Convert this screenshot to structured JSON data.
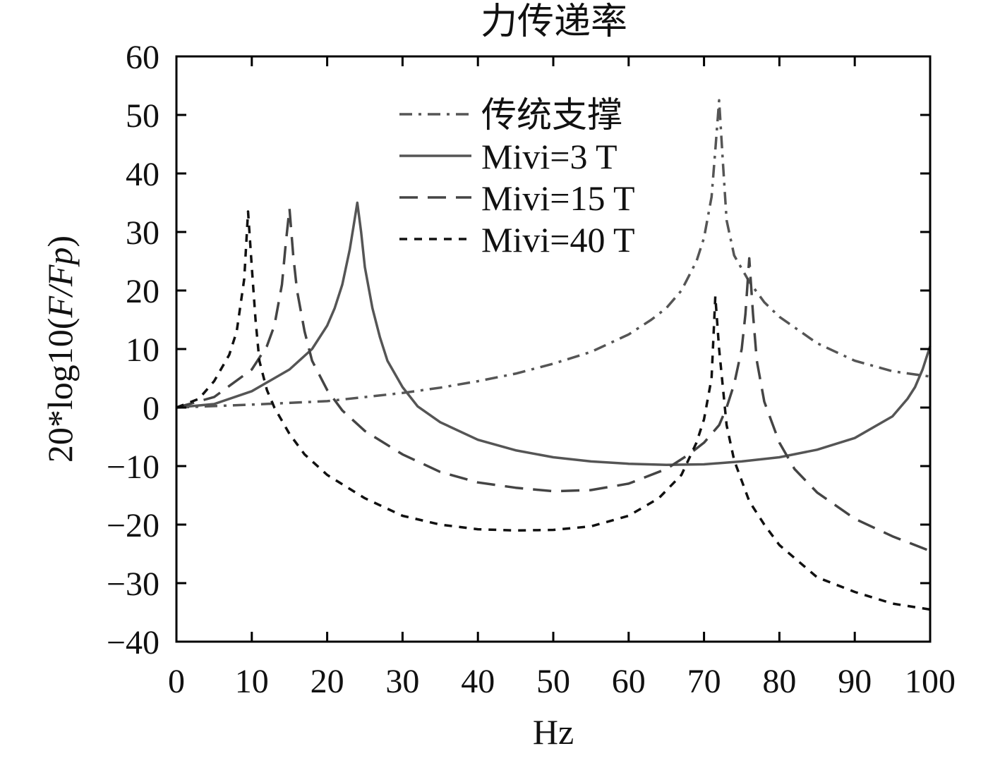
{
  "chart_data": {
    "type": "line",
    "title": "力传递率",
    "xlabel": "Hz",
    "ylabel_prefix": "20*log10(",
    "ylabel_italic": "F/Fp",
    "ylabel_suffix": ")",
    "xlim": [
      0,
      100
    ],
    "ylim": [
      -40,
      60
    ],
    "xticks": [
      0,
      10,
      20,
      30,
      40,
      50,
      60,
      70,
      80,
      90,
      100
    ],
    "yticks": [
      60,
      50,
      40,
      30,
      20,
      10,
      0,
      -10,
      -20,
      -30,
      -40
    ],
    "ytick_labels": [
      "60",
      "50",
      "40",
      "30",
      "20",
      "10",
      "0",
      "−10",
      "−20",
      "−30",
      "−40"
    ],
    "legend_position": "top-center",
    "series": [
      {
        "name": "传统支撑",
        "color": "#555555",
        "dash": "18,9,4,9",
        "x": [
          0,
          10,
          20,
          25,
          30,
          35,
          40,
          45,
          50,
          55,
          60,
          63,
          65,
          67,
          69,
          70,
          71,
          71.5,
          72,
          72.5,
          73,
          74,
          76,
          78,
          80,
          85,
          90,
          95,
          100
        ],
        "y": [
          0,
          0.5,
          1.1,
          1.8,
          2.5,
          3.4,
          4.5,
          5.8,
          7.5,
          9.5,
          12.5,
          15,
          17,
          20,
          25,
          29,
          36,
          44,
          52.5,
          42,
          32,
          26,
          21.5,
          18,
          15.5,
          11,
          8,
          6.2,
          5.3
        ]
      },
      {
        "name": "Mivi=3 T",
        "color": "#555555",
        "dash": "",
        "x": [
          0,
          5,
          10,
          15,
          18,
          20,
          21,
          22,
          23,
          23.5,
          24,
          24.5,
          25,
          26,
          27,
          28,
          30,
          32,
          35,
          40,
          45,
          50,
          55,
          60,
          65,
          70,
          75,
          80,
          85,
          90,
          95,
          97,
          98,
          99,
          100
        ],
        "y": [
          0,
          0.6,
          2.8,
          6.5,
          10,
          14,
          17,
          21,
          27,
          31,
          35,
          30,
          24,
          17,
          12,
          8,
          3.5,
          0.2,
          -2.5,
          -5.5,
          -7.3,
          -8.5,
          -9.2,
          -9.6,
          -9.8,
          -9.7,
          -9.2,
          -8.5,
          -7.2,
          -5.2,
          -1.5,
          1.5,
          3.5,
          6.5,
          10.5
        ]
      },
      {
        "name": "Mivi=15 T",
        "color": "#444444",
        "dash": "26,14",
        "x": [
          0,
          5,
          10,
          12,
          13,
          14,
          14.5,
          15,
          15.5,
          16,
          17,
          18,
          20,
          22,
          25,
          30,
          35,
          40,
          45,
          50,
          55,
          60,
          65,
          68,
          70,
          72,
          73,
          74,
          75,
          75.5,
          76,
          76.5,
          77,
          78,
          80,
          82,
          85,
          90,
          95,
          100
        ],
        "y": [
          0,
          1.8,
          6.5,
          10.5,
          14,
          21,
          28,
          34,
          26,
          20,
          13,
          8,
          3,
          -0.5,
          -4,
          -8,
          -11,
          -12.8,
          -13.7,
          -14.3,
          -14.1,
          -13,
          -10.5,
          -8,
          -6,
          -3,
          0,
          4,
          10,
          16,
          25.5,
          16,
          8,
          1,
          -6,
          -10.5,
          -14.5,
          -19,
          -22,
          -24.5
        ]
      },
      {
        "name": "Mivi=40 T",
        "color": "#111111",
        "dash": "11,10",
        "x": [
          0,
          3,
          5,
          7,
          8,
          9,
          9.5,
          10,
          10.5,
          11,
          12,
          13,
          15,
          17,
          20,
          25,
          30,
          35,
          40,
          45,
          50,
          55,
          60,
          64,
          67,
          69,
          70,
          71,
          71.5,
          72,
          73,
          74,
          76,
          78,
          80,
          85,
          90,
          95,
          100
        ],
        "y": [
          0,
          1.5,
          4.5,
          9,
          13,
          22,
          33.5,
          24,
          15,
          8,
          3,
          0,
          -4.5,
          -8,
          -11.5,
          -15.5,
          -18.5,
          -20,
          -20.8,
          -21,
          -20.9,
          -20.3,
          -18.5,
          -15.5,
          -11.5,
          -6,
          -2,
          5,
          19,
          10,
          -3,
          -9,
          -16,
          -20,
          -23.5,
          -29,
          -31.5,
          -33.5,
          -34.5
        ]
      }
    ]
  }
}
